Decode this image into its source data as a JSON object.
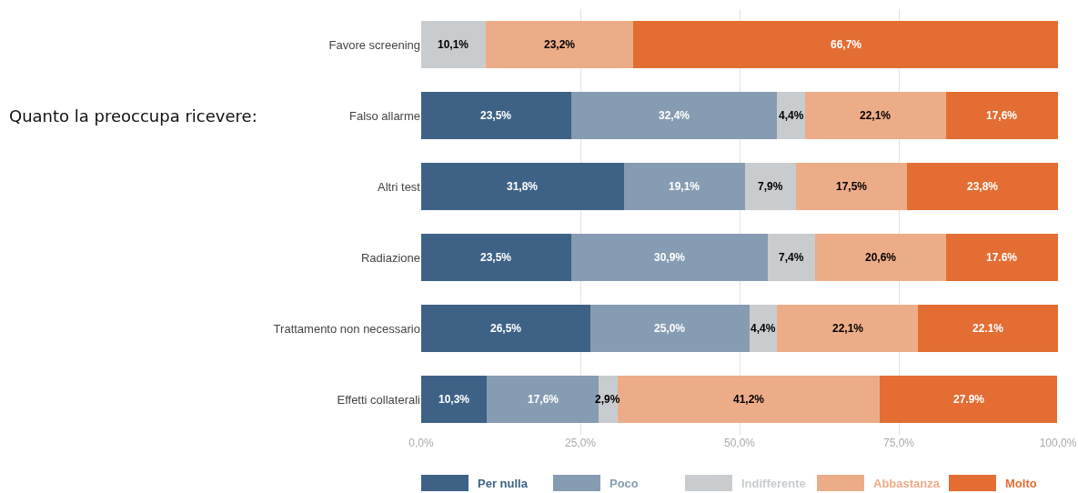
{
  "chart_data": {
    "type": "bar",
    "orientation": "horizontal",
    "stacked": true,
    "categories": [
      "Favore screening",
      "Falso allarme",
      "Altri test",
      "Radiazione",
      "Trattamento non necessario",
      "Effetti collaterali"
    ],
    "series": [
      {
        "name": "Per nulla",
        "color": "#3e6286",
        "values": [
          null,
          23.5,
          31.8,
          23.5,
          26.5,
          10.3
        ],
        "value_labels": [
          null,
          "23,5%",
          "31,8%",
          "23,5%",
          "26,5%",
          "10,3%"
        ]
      },
      {
        "name": "Poco",
        "color": "#869cb2",
        "values": [
          null,
          32.4,
          19.1,
          30.9,
          25.0,
          17.6
        ],
        "value_labels": [
          null,
          "32,4%",
          "19,1%",
          "30,9%",
          "25,0%",
          "17,6%"
        ]
      },
      {
        "name": "Indifferente",
        "color": "#c9cccf",
        "values": [
          10.1,
          4.4,
          7.9,
          7.4,
          4.4,
          2.9
        ],
        "value_labels": [
          "10,1%",
          "4,4%",
          "7,9%",
          "7,4%",
          "4,4%",
          "2,9%"
        ]
      },
      {
        "name": "Abbastanza",
        "color": "#edac88",
        "values": [
          23.2,
          22.1,
          17.5,
          20.6,
          22.1,
          41.2
        ],
        "value_labels": [
          "23,2%",
          "22,1%",
          "17,5%",
          "20,6%",
          "22,1%",
          "41,2%"
        ]
      },
      {
        "name": "Molto",
        "color": "#e36d33",
        "values": [
          66.7,
          17.6,
          23.8,
          17.6,
          22.1,
          27.9
        ],
        "value_labels": [
          "66,7%",
          "17,6%",
          "23,8%",
          "17.6%",
          "22.1%",
          "27.9%"
        ]
      }
    ],
    "xlim": [
      0,
      100
    ],
    "xticks": [
      {
        "value": 0,
        "label": "0,0%"
      },
      {
        "value": 25,
        "label": "25,0%"
      },
      {
        "value": 50,
        "label": "50,0%"
      },
      {
        "value": 75,
        "label": "75,0%"
      },
      {
        "value": 100,
        "label": "100,0%"
      }
    ],
    "grid": "x",
    "legend": "bottom",
    "annotations": [
      "Quanto la preoccupa ricevere:"
    ]
  }
}
